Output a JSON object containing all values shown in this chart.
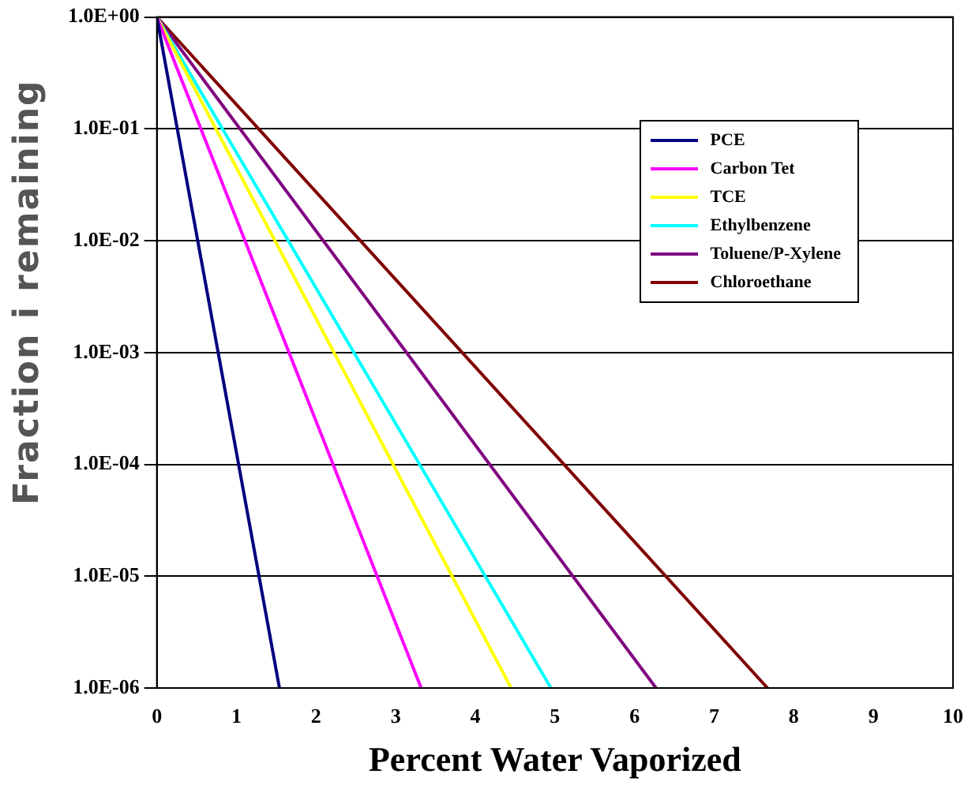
{
  "chart_data": {
    "type": "line",
    "xlabel": "Percent Water Vaporized",
    "ylabel": "Fraction i remaining",
    "series": [
      {
        "name": "PCE",
        "color": "#000080",
        "x": [
          0,
          1.54
        ],
        "values": [
          1,
          1e-06
        ]
      },
      {
        "name": "Carbon Tet",
        "color": "#ff00ff",
        "x": [
          0,
          3.32
        ],
        "values": [
          1,
          1e-06
        ]
      },
      {
        "name": "TCE",
        "color": "#ffff00",
        "x": [
          0,
          4.45
        ],
        "values": [
          1,
          1e-06
        ]
      },
      {
        "name": "Ethylbenzene",
        "color": "#00ffff",
        "x": [
          0,
          4.95
        ],
        "values": [
          1,
          1e-06
        ]
      },
      {
        "name": "Toluene/P-Xylene",
        "color": "#800080",
        "x": [
          0,
          6.27
        ],
        "values": [
          1,
          1e-06
        ]
      },
      {
        "name": "Chloroethane",
        "color": "#800000",
        "x": [
          0,
          7.67
        ],
        "values": [
          1,
          1e-06
        ]
      }
    ],
    "log": "y",
    "xlim": [
      0,
      10
    ],
    "xticks": [
      0,
      1,
      2,
      3,
      4,
      5,
      6,
      7,
      8,
      9,
      10
    ],
    "ylim": [
      1e-06,
      1
    ],
    "yticks": [
      {
        "value": 1,
        "label": "1.0E+00"
      },
      {
        "value": 0.1,
        "label": "1.0E-01"
      },
      {
        "value": 0.01,
        "label": "1.0E-02"
      },
      {
        "value": 0.001,
        "label": "1.0E-03"
      },
      {
        "value": 0.0001,
        "label": "1.0E-04"
      },
      {
        "value": 1e-05,
        "label": "1.0E-05"
      },
      {
        "value": 1e-06,
        "label": "1.0E-06"
      }
    ],
    "grid": "y",
    "legend": "top right",
    "marker": "none",
    "line_style": "solid"
  }
}
